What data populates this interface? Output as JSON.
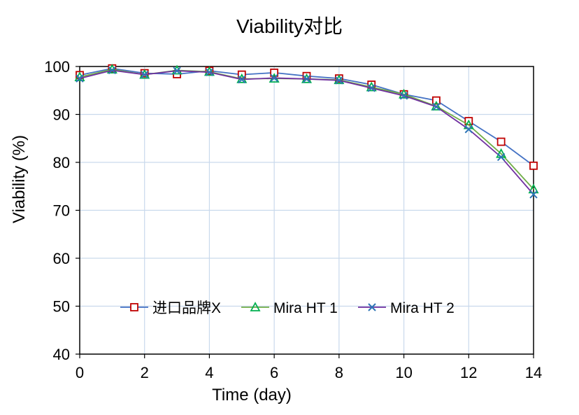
{
  "chart_data": {
    "type": "line",
    "title": "Viability对比",
    "xlabel": "Time (day)",
    "ylabel": "Viability (%)",
    "xlim": [
      0,
      14
    ],
    "ylim": [
      40,
      100
    ],
    "x_ticks": [
      "0",
      "2",
      "4",
      "6",
      "8",
      "10",
      "12",
      "14"
    ],
    "y_ticks": [
      "40",
      "50",
      "60",
      "70",
      "80",
      "90",
      "100"
    ],
    "grid": true,
    "legend_position": "center-bottom",
    "x": [
      0,
      1,
      2,
      3,
      4,
      5,
      6,
      7,
      8,
      9,
      10,
      11,
      12,
      13,
      14
    ],
    "series": [
      {
        "name": "进口品牌X",
        "marker": "square",
        "line_color": "#4472C4",
        "marker_color": "#C00000",
        "values": [
          98.2,
          99.6,
          98.6,
          98.4,
          99.1,
          98.3,
          98.7,
          98.0,
          97.5,
          96.2,
          94.2,
          92.9,
          88.6,
          84.3,
          79.3
        ]
      },
      {
        "name": "Mira HT 1",
        "marker": "triangle",
        "line_color": "#70AD47",
        "marker_color": "#00B050",
        "values": [
          97.8,
          99.4,
          98.3,
          99.2,
          98.9,
          97.4,
          97.5,
          97.4,
          97.2,
          95.7,
          94.2,
          91.7,
          87.8,
          81.8,
          74.4
        ]
      },
      {
        "name": "Mira HT 2",
        "marker": "x",
        "line_color": "#7030A0",
        "marker_color": "#2E75B6",
        "values": [
          97.5,
          99.2,
          98.3,
          99.1,
          98.8,
          97.3,
          97.6,
          97.4,
          97.1,
          95.5,
          93.9,
          91.6,
          86.9,
          81.1,
          73.3
        ]
      }
    ]
  }
}
